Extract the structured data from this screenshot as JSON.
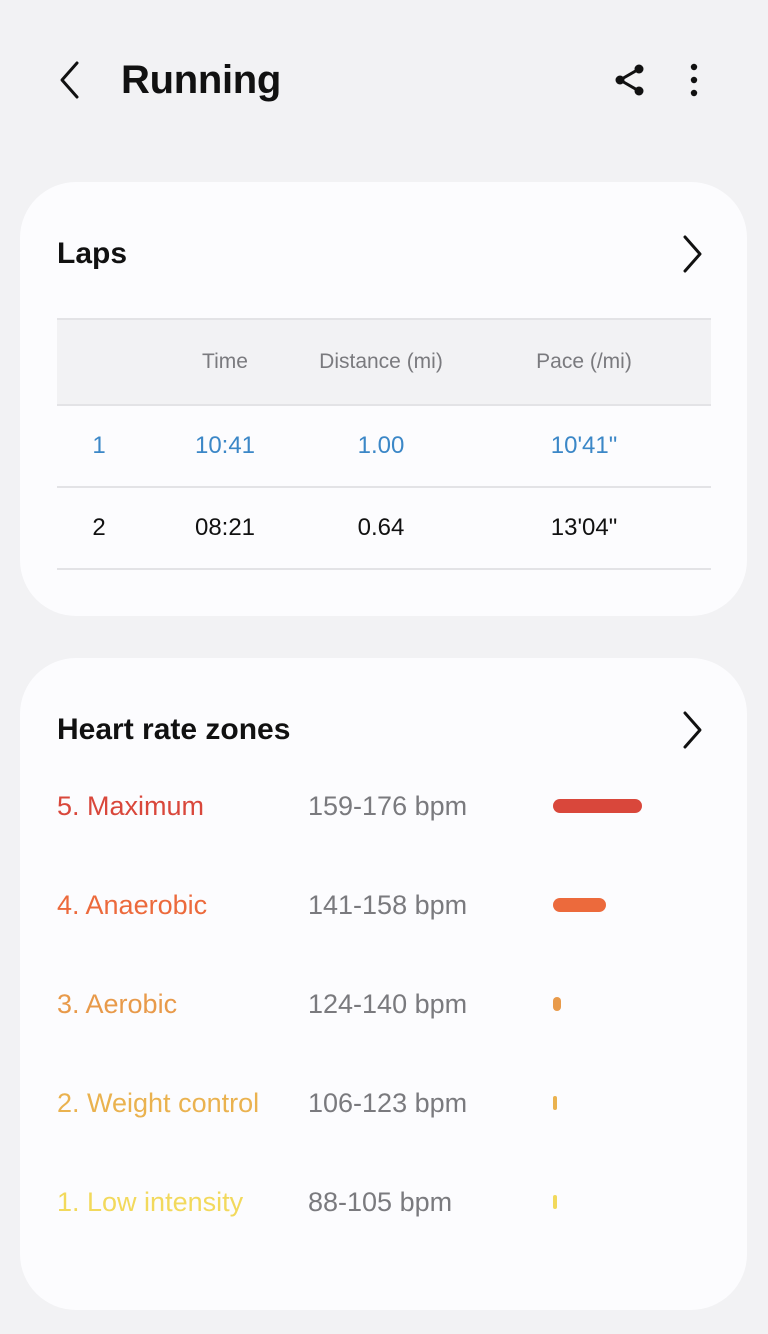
{
  "header": {
    "title": "Running",
    "back_icon": "chevron-left-icon",
    "share_icon": "share-icon",
    "more_icon": "more-vertical-icon"
  },
  "laps": {
    "title": "Laps",
    "columns": [
      "",
      "Time",
      "Distance (mi)",
      "Pace (/mi)"
    ],
    "rows": [
      {
        "lap": "1",
        "time": "10:41",
        "distance": "1.00",
        "pace": "10'41\"",
        "active": true
      },
      {
        "lap": "2",
        "time": "08:21",
        "distance": "0.64",
        "pace": "13'04\"",
        "active": false
      }
    ],
    "highlight_color": "#3b87c7"
  },
  "heart_rate_zones": {
    "title": "Heart rate zones",
    "zones": [
      {
        "name": "5. Maximum",
        "range": "159-176 bpm",
        "color": "#d9473b",
        "fraction": 0.74
      },
      {
        "name": "4. Anaerobic",
        "range": "141-158 bpm",
        "color": "#ec6a3c",
        "fraction": 0.44
      },
      {
        "name": "3. Aerobic",
        "range": "124-140 bpm",
        "color": "#e89a4a",
        "fraction": 0.07
      },
      {
        "name": "2. Weight control",
        "range": "106-123 bpm",
        "color": "#eab24f",
        "fraction": 0.03
      },
      {
        "name": "1. Low intensity",
        "range": "88-105 bpm",
        "color": "#f2d95c",
        "fraction": 0.015
      }
    ]
  }
}
